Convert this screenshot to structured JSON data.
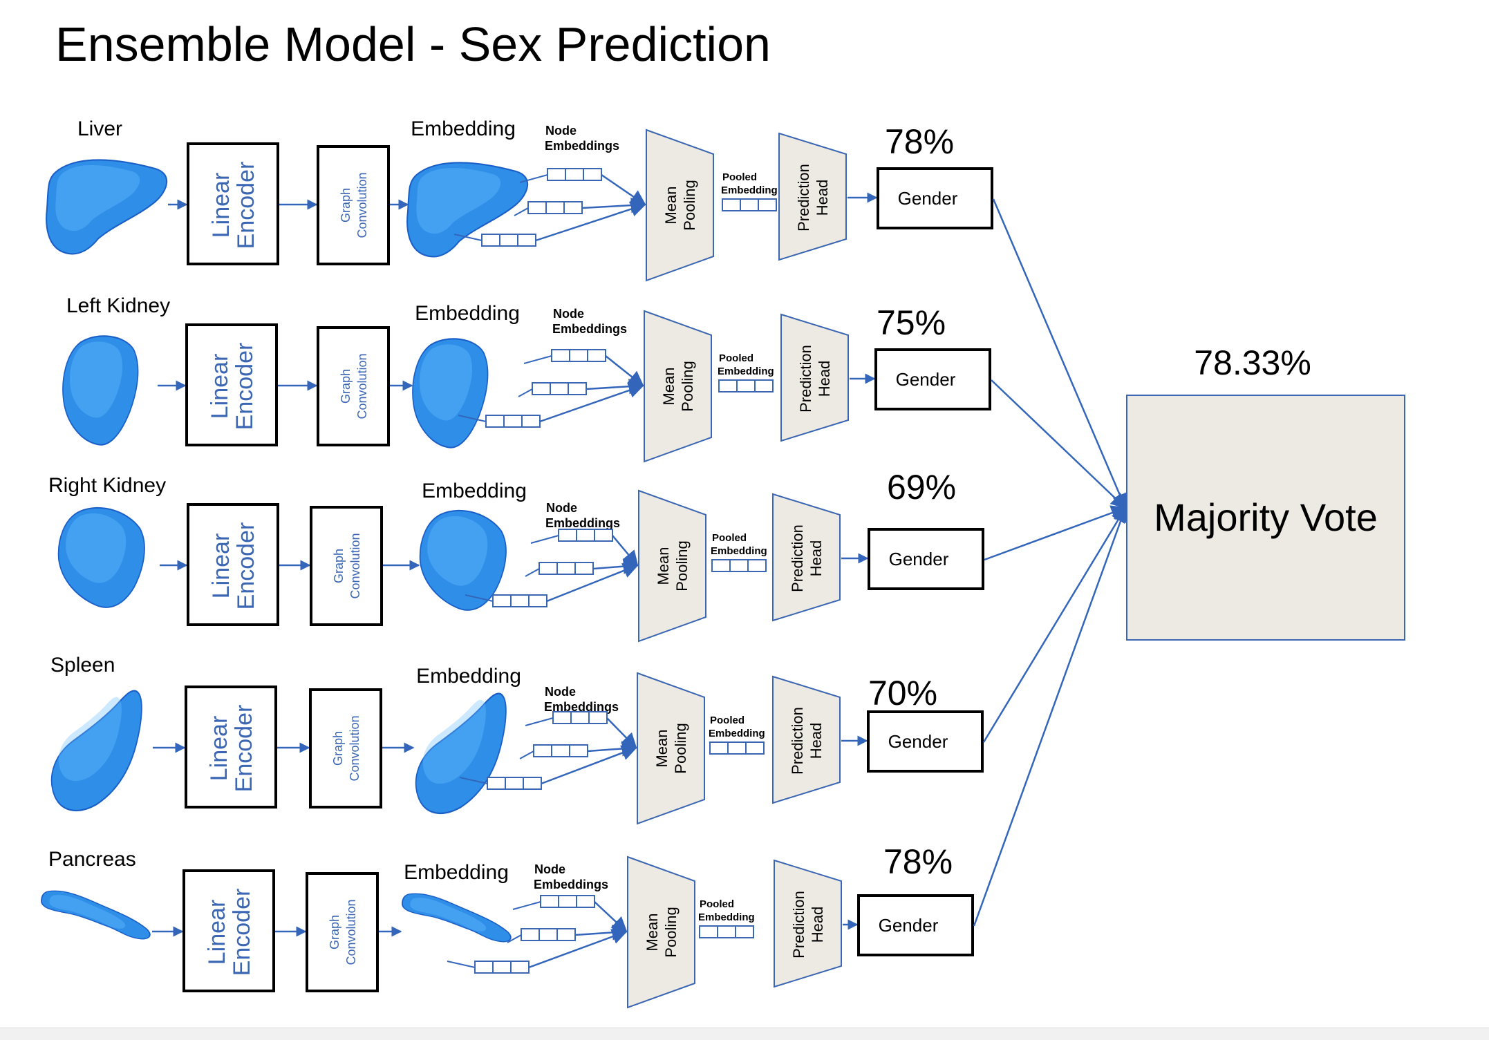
{
  "title": "Ensemble Model - Sex Prediction",
  "labels": {
    "embedding": "Embedding",
    "node_embeddings_1": "Node",
    "node_embeddings_2": "Embeddings",
    "linear_encoder_1": "Linear",
    "linear_encoder_2": "Encoder",
    "graph_conv_1": "Graph",
    "graph_conv_2": "Convolution",
    "mean_pooling_1": "Mean",
    "mean_pooling_2": "Pooling",
    "pooled_embedding_1": "Pooled",
    "pooled_embedding_2": "Embedding",
    "prediction_head_1": "Prediction",
    "prediction_head_2": "Head",
    "gender": "Gender"
  },
  "organs": [
    {
      "name": "Liver",
      "accuracy": "78%"
    },
    {
      "name": "Left Kidney",
      "accuracy": "75%"
    },
    {
      "name": "Right Kidney",
      "accuracy": "69%"
    },
    {
      "name": "Spleen",
      "accuracy": "70%"
    },
    {
      "name": "Pancreas",
      "accuracy": "78%"
    }
  ],
  "majority_vote": {
    "label": "Majority Vote",
    "accuracy": "78.33%"
  },
  "colors": {
    "arrow": "#3366bb",
    "organ_fill": "#2f8fe8",
    "organ_highlight": "#6cc0ff",
    "organ_shadow": "#1a5fc7",
    "trapezoid_fill": "#edeae3",
    "trapezoid_stroke": "#3a66b3",
    "graph_text": "#3a66b3"
  }
}
